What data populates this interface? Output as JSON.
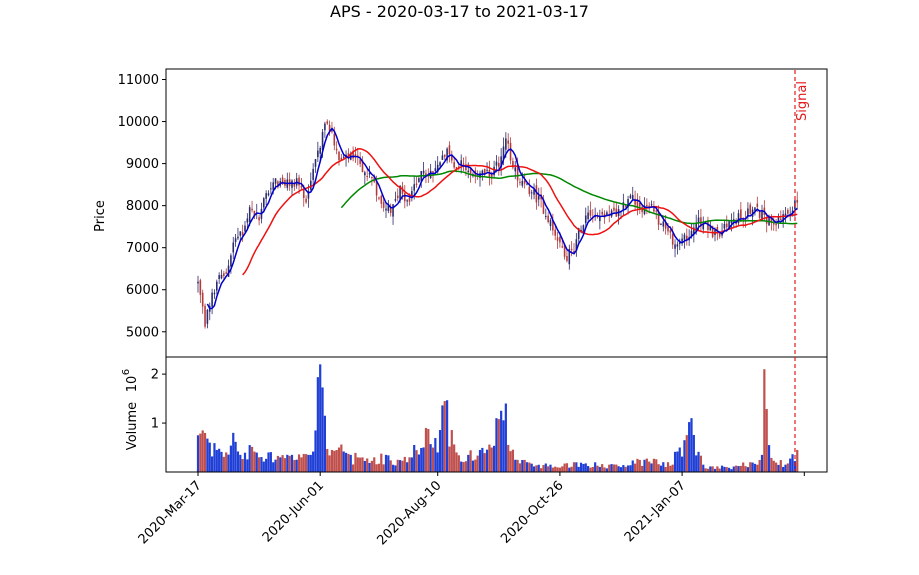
{
  "chart_data": {
    "type": "candlestick",
    "title": "APS - 2020-03-17 to 2021-03-17",
    "price_panel": {
      "ylabel": "Price",
      "ylim": [
        4400,
        11250
      ],
      "yticks": [
        5000,
        6000,
        7000,
        8000,
        9000,
        10000,
        11000
      ],
      "ytick_labels": [
        "5000",
        "6000",
        "7000",
        "8000",
        "9000",
        "10000",
        "11000"
      ],
      "signal_label": "Signal",
      "signal_color": "#e31a1c"
    },
    "volume_panel": {
      "ylabel": "Volume",
      "exponent_label": "10",
      "exponent": "6",
      "ylim": [
        0,
        2.35
      ],
      "yticks": [
        1,
        2
      ],
      "ytick_labels": [
        "1",
        "2"
      ],
      "up_color": "#1f3fd6",
      "down_color": "#c0504d"
    },
    "xticks": [
      {
        "label": "2020-Mar-17",
        "index": 0
      },
      {
        "label": "2020-Jun-01",
        "index": 52
      },
      {
        "label": "2020-Aug-10",
        "index": 102
      },
      {
        "label": "2020-Oct-26",
        "index": 154
      },
      {
        "label": "2021-Jan-07",
        "index": 206
      },
      {
        "label": "",
        "index": 258
      }
    ],
    "n_periods": 256,
    "price_anchors": [
      [
        0,
        6150
      ],
      [
        3,
        5200
      ],
      [
        5,
        5650
      ],
      [
        8,
        6200
      ],
      [
        12,
        6400
      ],
      [
        16,
        7350
      ],
      [
        19,
        7250
      ],
      [
        22,
        7850
      ],
      [
        26,
        7700
      ],
      [
        29,
        8250
      ],
      [
        33,
        8550
      ],
      [
        38,
        8500
      ],
      [
        42,
        8600
      ],
      [
        46,
        8200
      ],
      [
        50,
        9000
      ],
      [
        54,
        9900
      ],
      [
        57,
        9800
      ],
      [
        60,
        9050
      ],
      [
        63,
        9100
      ],
      [
        67,
        9250
      ],
      [
        70,
        8800
      ],
      [
        74,
        8600
      ],
      [
        78,
        8100
      ],
      [
        82,
        7950
      ],
      [
        86,
        8350
      ],
      [
        90,
        8100
      ],
      [
        94,
        8750
      ],
      [
        98,
        8700
      ],
      [
        102,
        8950
      ],
      [
        106,
        9400
      ],
      [
        109,
        8800
      ],
      [
        112,
        9000
      ],
      [
        116,
        8650
      ],
      [
        120,
        8800
      ],
      [
        124,
        8700
      ],
      [
        128,
        9000
      ],
      [
        131,
        9600
      ],
      [
        134,
        8900
      ],
      [
        138,
        8500
      ],
      [
        142,
        8350
      ],
      [
        146,
        8050
      ],
      [
        150,
        7600
      ],
      [
        154,
        7100
      ],
      [
        157,
        6800
      ],
      [
        160,
        7000
      ],
      [
        163,
        7550
      ],
      [
        166,
        7900
      ],
      [
        170,
        7750
      ],
      [
        174,
        7800
      ],
      [
        178,
        7750
      ],
      [
        182,
        8100
      ],
      [
        185,
        8250
      ],
      [
        188,
        7950
      ],
      [
        192,
        8000
      ],
      [
        196,
        7650
      ],
      [
        200,
        7350
      ],
      [
        203,
        7050
      ],
      [
        206,
        7150
      ],
      [
        209,
        7300
      ],
      [
        212,
        7650
      ],
      [
        216,
        7550
      ],
      [
        220,
        7300
      ],
      [
        224,
        7450
      ],
      [
        228,
        7650
      ],
      [
        232,
        7750
      ],
      [
        236,
        7900
      ],
      [
        240,
        7800
      ],
      [
        244,
        7600
      ],
      [
        248,
        7650
      ],
      [
        252,
        7750
      ],
      [
        255,
        8150
      ]
    ],
    "ma_fast": {
      "color": "#0000cc",
      "start": 4,
      "window": 5
    },
    "ma_mid": {
      "color": "#ee1111",
      "start": 19,
      "window": 20
    },
    "ma_slow": {
      "color": "#008800",
      "start": 61,
      "window": 60
    },
    "volume_anchors": [
      [
        0,
        0.75
      ],
      [
        2,
        0.85
      ],
      [
        5,
        0.6
      ],
      [
        8,
        0.45
      ],
      [
        12,
        0.4
      ],
      [
        15,
        0.8
      ],
      [
        18,
        0.35
      ],
      [
        22,
        0.55
      ],
      [
        26,
        0.3
      ],
      [
        30,
        0.4
      ],
      [
        35,
        0.3
      ],
      [
        40,
        0.35
      ],
      [
        44,
        0.3
      ],
      [
        48,
        0.35
      ],
      [
        52,
        2.2
      ],
      [
        54,
        1.15
      ],
      [
        57,
        0.45
      ],
      [
        60,
        0.5
      ],
      [
        65,
        0.35
      ],
      [
        70,
        0.3
      ],
      [
        75,
        0.3
      ],
      [
        80,
        0.35
      ],
      [
        85,
        0.25
      ],
      [
        90,
        0.3
      ],
      [
        97,
        0.9
      ],
      [
        100,
        0.5
      ],
      [
        105,
        1.45
      ],
      [
        110,
        0.4
      ],
      [
        115,
        0.35
      ],
      [
        120,
        0.45
      ],
      [
        125,
        0.5
      ],
      [
        127,
        1.1
      ],
      [
        131,
        1.4
      ],
      [
        135,
        0.25
      ],
      [
        140,
        0.2
      ],
      [
        150,
        0.15
      ],
      [
        160,
        0.2
      ],
      [
        175,
        0.15
      ],
      [
        190,
        0.25
      ],
      [
        200,
        0.2
      ],
      [
        205,
        0.5
      ],
      [
        210,
        1.1
      ],
      [
        215,
        0.15
      ],
      [
        225,
        0.1
      ],
      [
        235,
        0.2
      ],
      [
        240,
        0.35
      ],
      [
        241,
        2.1
      ],
      [
        243,
        0.55
      ],
      [
        250,
        0.15
      ],
      [
        255,
        0.45
      ]
    ]
  }
}
